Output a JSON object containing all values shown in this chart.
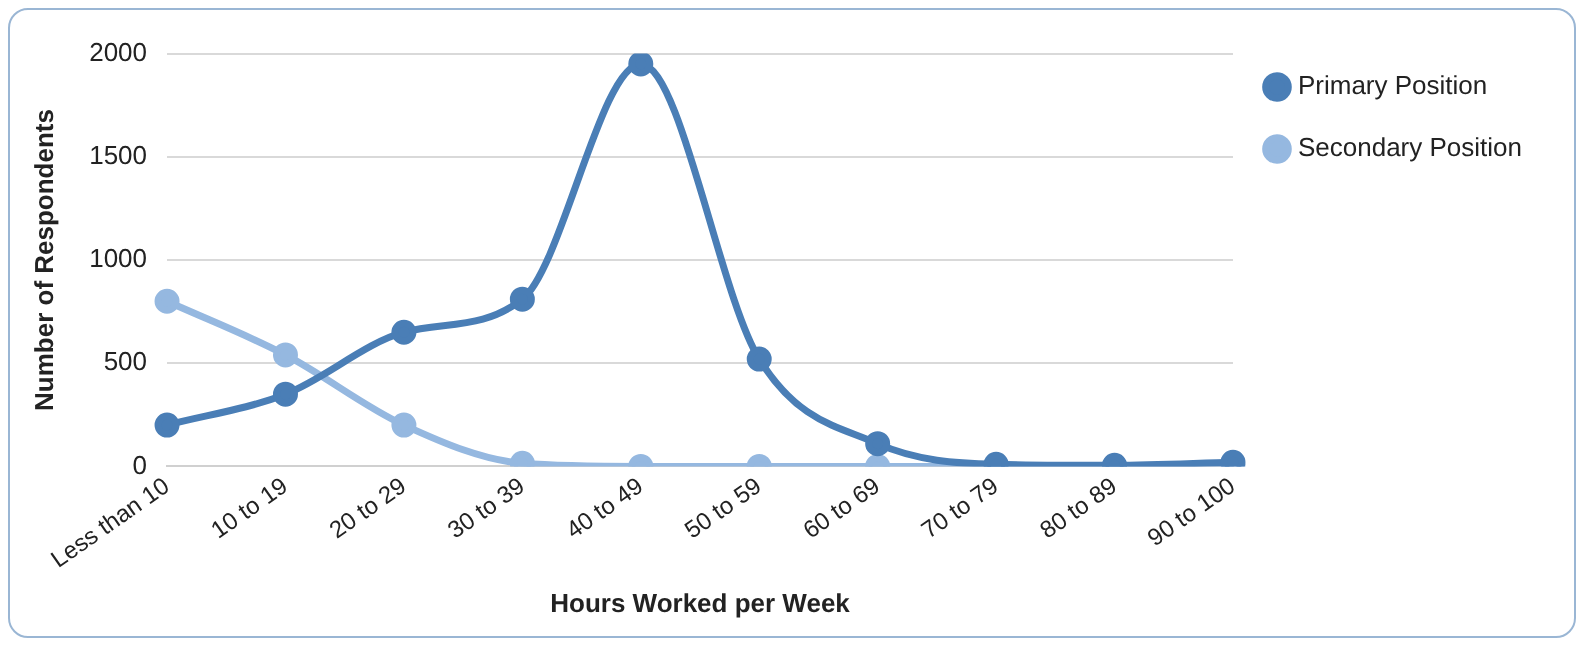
{
  "chart_data": {
    "type": "line",
    "xlabel": "Hours Worked per Week",
    "ylabel": "Number of Respondents",
    "categories": [
      "Less than 10",
      "10 to 19",
      "20 to 29",
      "30 to 39",
      "40 to 49",
      "50 to 59",
      "60 to 69",
      "70 to 79",
      "80 to 89",
      "90 to 100"
    ],
    "series": [
      {
        "name": "Primary Position",
        "color": "#4a7eb6",
        "values": [
          200,
          350,
          650,
          810,
          1950,
          520,
          110,
          10,
          5,
          20
        ]
      },
      {
        "name": "Secondary Position",
        "color": "#95b8e0",
        "values": [
          800,
          540,
          200,
          15,
          0,
          0,
          0,
          0,
          0,
          0
        ]
      }
    ],
    "ylim": [
      0,
      2000
    ],
    "yticks": [
      0,
      500,
      1000,
      1500,
      2000
    ],
    "grid": "y",
    "legend": "right",
    "marker": "circle",
    "line_style": "solid"
  }
}
